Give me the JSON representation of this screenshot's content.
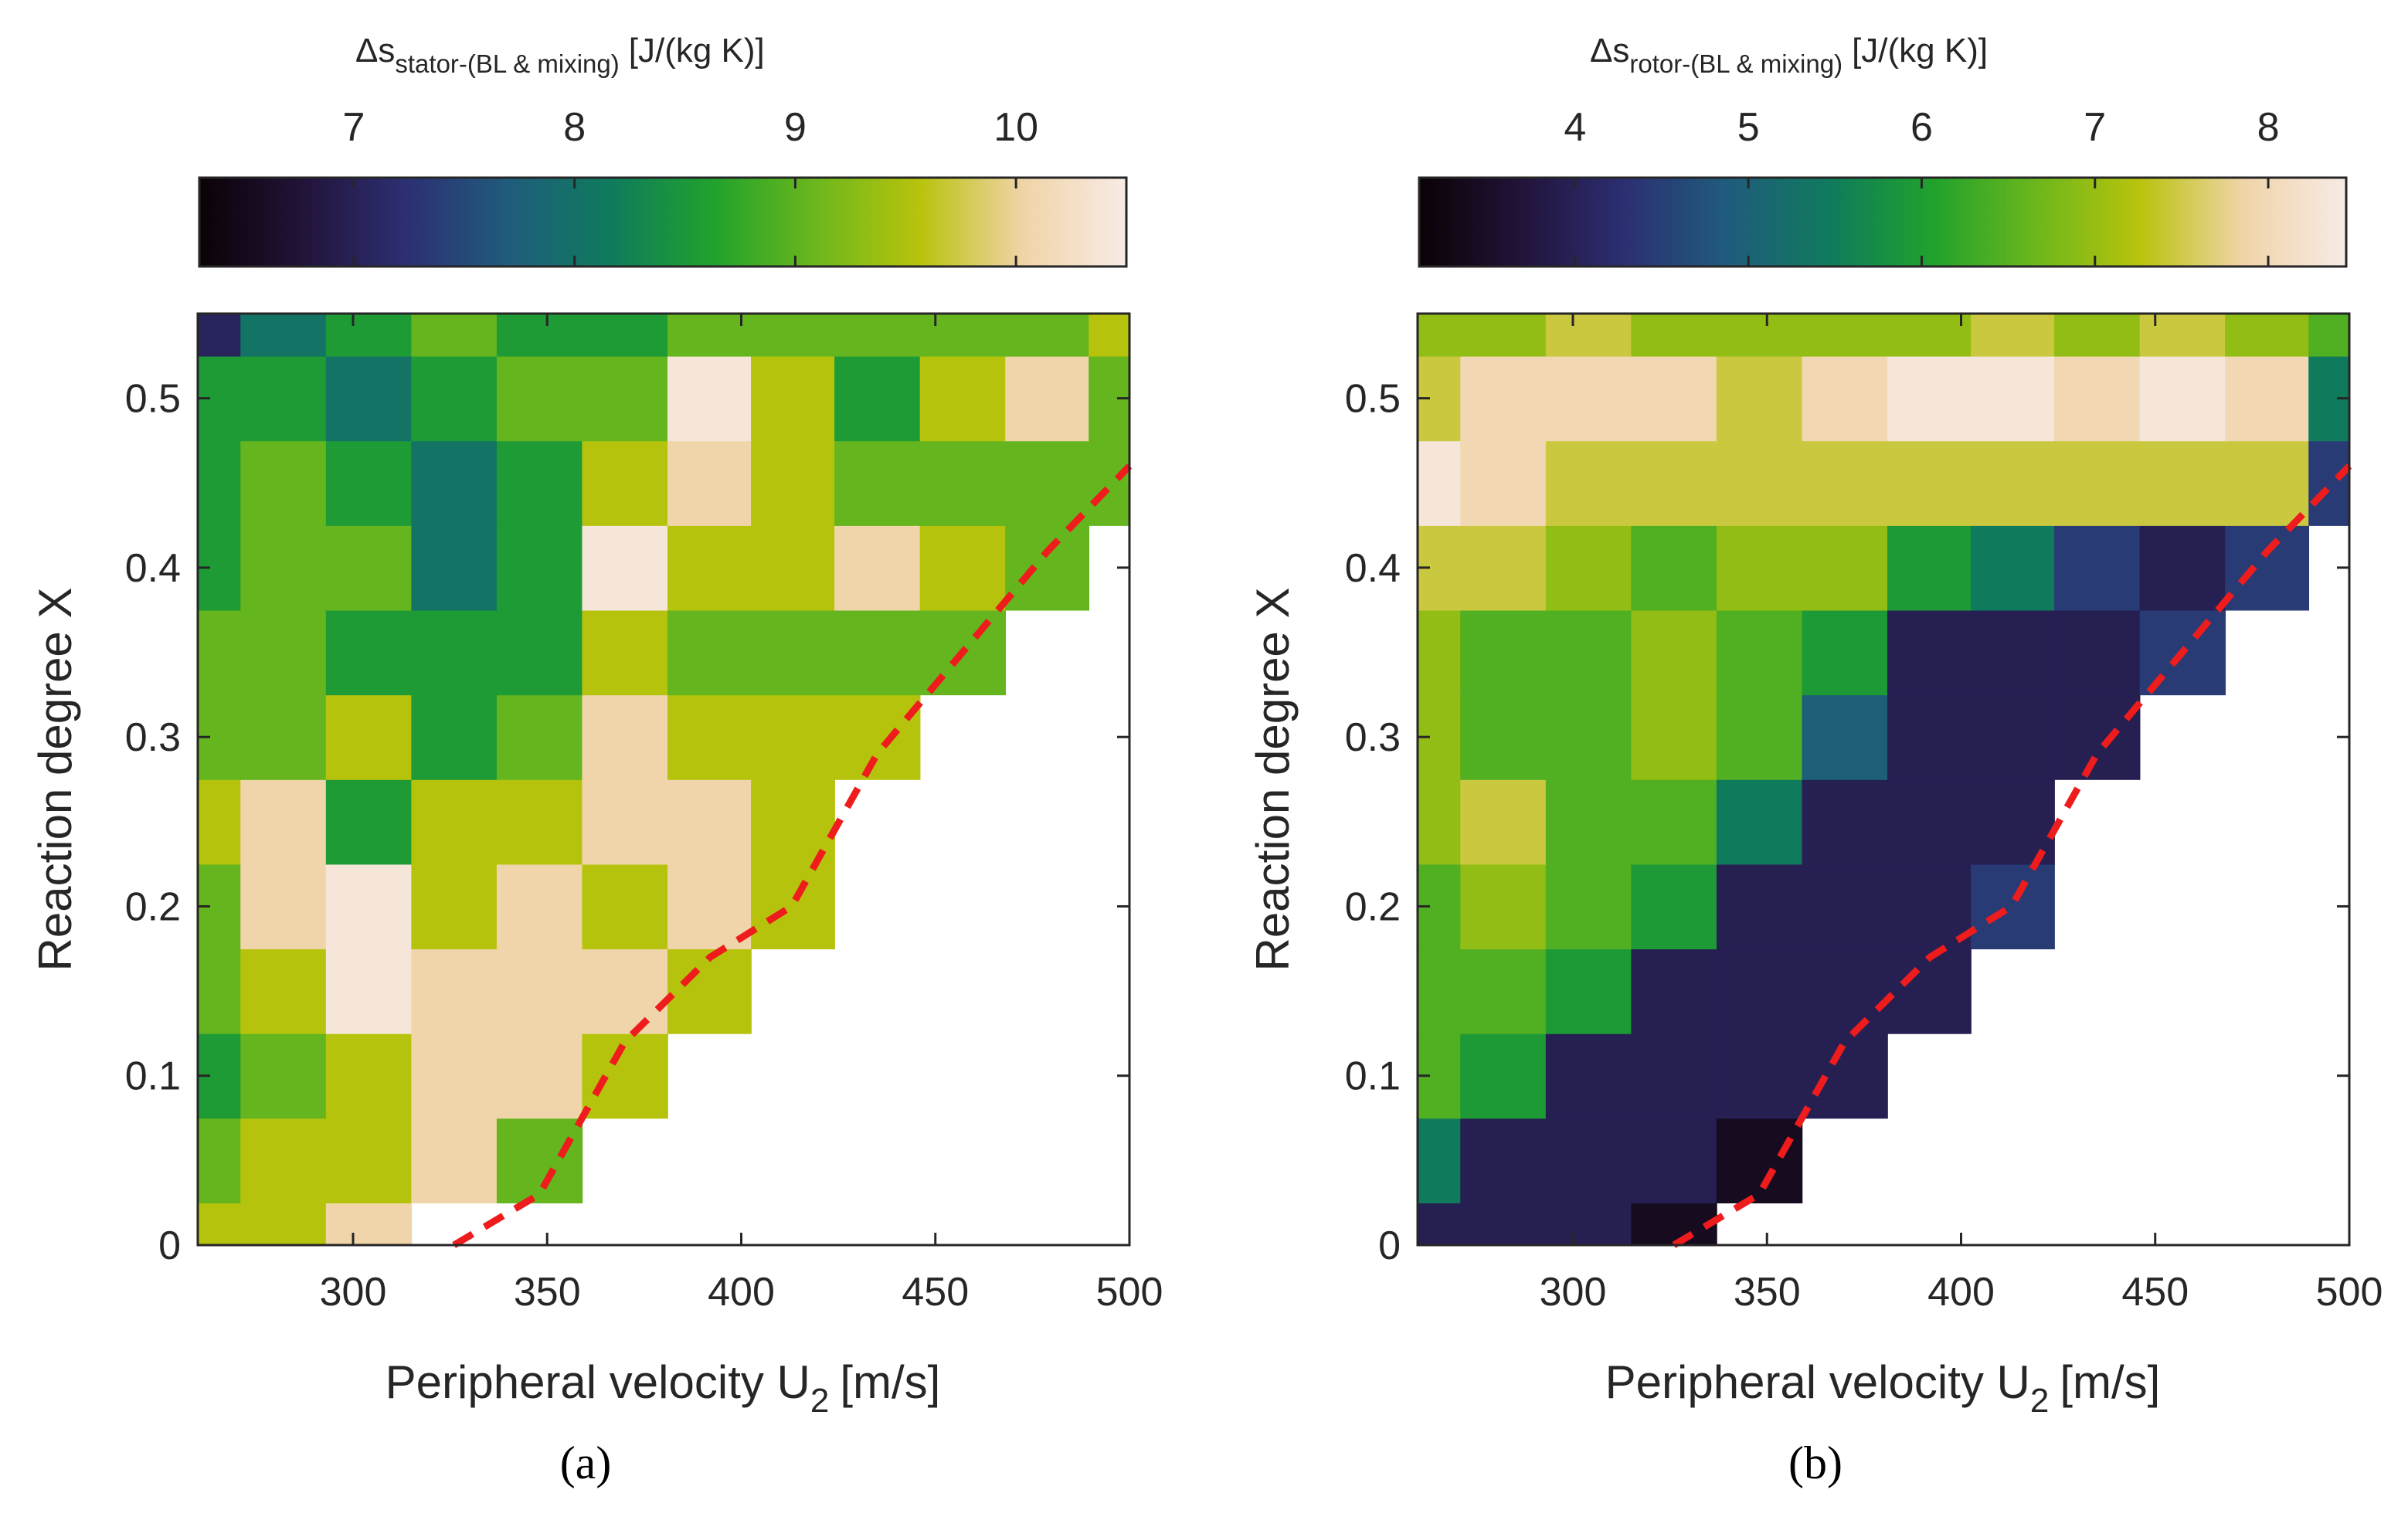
{
  "chart_data": [
    {
      "type": "heatmap",
      "panel_label": "a",
      "colorbar": {
        "title_main": "Δs",
        "title_sub": "stator-(BL & mixing)",
        "title_unit": "[J/(kg K)]",
        "ticks": [
          7,
          8,
          9,
          10
        ],
        "range": [
          6.3,
          10.5
        ],
        "levels": [
          6.8,
          7.3,
          7.8,
          8.3,
          8.8,
          9.3,
          9.8,
          10.3
        ]
      },
      "xlabel_main": "Peripheral velocity U",
      "xlabel_sub": "2",
      "xlabel_unit": "[m/s]",
      "ylabel": "Reaction degree X",
      "xlim": [
        260,
        500
      ],
      "ylim": [
        0,
        0.55
      ],
      "xticks": [
        300,
        350,
        400,
        450,
        500
      ],
      "yticks": [
        0,
        0.1,
        0.2,
        0.3,
        0.4,
        0.5
      ],
      "x": [
        260,
        282,
        304,
        326,
        348,
        370,
        392,
        413,
        435,
        457,
        479,
        500
      ],
      "y": [
        0,
        0.05,
        0.1,
        0.15,
        0.2,
        0.25,
        0.3,
        0.35,
        0.4,
        0.45,
        0.5,
        0.55
      ],
      "boundary_x": [
        326,
        348,
        370,
        392,
        413,
        435,
        457,
        479,
        500
      ],
      "boundary_y": [
        0,
        0.03,
        0.12,
        0.17,
        0.2,
        0.29,
        0.35,
        0.41,
        0.46
      ],
      "z": [
        [
          9.3,
          9.6,
          9.8,
          null,
          null,
          null,
          null,
          null,
          null,
          null,
          null,
          null
        ],
        [
          8.8,
          9.4,
          9.6,
          9.9,
          9.0,
          null,
          null,
          null,
          null,
          null,
          null,
          null
        ],
        [
          8.6,
          9.2,
          9.7,
          9.9,
          9.8,
          9.5,
          null,
          null,
          null,
          null,
          null,
          null
        ],
        [
          8.9,
          9.7,
          10.4,
          10.0,
          9.8,
          9.9,
          9.6,
          null,
          null,
          null,
          null,
          null
        ],
        [
          8.9,
          10.0,
          10.5,
          9.4,
          9.9,
          9.7,
          10.0,
          9.5,
          null,
          null,
          null,
          null
        ],
        [
          9.4,
          10.1,
          8.3,
          9.7,
          9.5,
          9.8,
          9.8,
          9.6,
          null,
          null,
          null,
          null
        ],
        [
          9.1,
          9.2,
          9.3,
          8.5,
          9.0,
          9.8,
          9.6,
          9.3,
          9.4,
          null,
          null,
          null
        ],
        [
          8.8,
          8.9,
          8.3,
          8.3,
          8.5,
          9.6,
          9.2,
          9.2,
          8.9,
          9.0,
          null,
          null
        ],
        [
          8.6,
          9.1,
          8.9,
          8.1,
          8.4,
          10.3,
          9.5,
          9.3,
          10.1,
          9.4,
          9.2,
          null
        ],
        [
          8.4,
          8.8,
          8.4,
          8.0,
          8.5,
          9.6,
          9.9,
          9.6,
          9.1,
          9.2,
          8.8,
          9.0
        ],
        [
          8.3,
          8.5,
          8.0,
          8.5,
          8.9,
          9.2,
          10.4,
          9.4,
          8.7,
          9.4,
          10.2,
          9.2
        ],
        [
          6.8,
          8.2,
          8.6,
          9.0,
          8.7,
          8.4,
          8.9,
          9.2,
          9.1,
          8.8,
          9.2,
          9.4
        ]
      ]
    },
    {
      "type": "heatmap",
      "panel_label": "b",
      "colorbar": {
        "title_main": "Δs",
        "title_sub": "rotor-(BL & mixing)",
        "title_unit": "[J/(kg K)]",
        "ticks": [
          4,
          5,
          6,
          7,
          8
        ],
        "range": [
          3.1,
          8.45
        ],
        "levels": [
          3.7,
          4.2,
          4.7,
          5.2,
          5.7,
          6.2,
          6.7,
          7.2,
          7.7,
          8.2
        ]
      },
      "xlabel_main": "Peripheral velocity U",
      "xlabel_sub": "2",
      "xlabel_unit": "[m/s]",
      "ylabel": "Reaction degree X",
      "xlim": [
        260,
        500
      ],
      "ylim": [
        0,
        0.55
      ],
      "xticks": [
        300,
        350,
        400,
        450,
        500
      ],
      "yticks": [
        0,
        0.1,
        0.2,
        0.3,
        0.4,
        0.5
      ],
      "x": [
        260,
        282,
        304,
        326,
        348,
        370,
        392,
        413,
        435,
        457,
        479,
        500
      ],
      "y": [
        0,
        0.05,
        0.1,
        0.15,
        0.2,
        0.25,
        0.3,
        0.35,
        0.4,
        0.45,
        0.5,
        0.55
      ],
      "boundary_x": [
        326,
        348,
        370,
        392,
        413,
        435,
        457,
        479,
        500
      ],
      "boundary_y": [
        0,
        0.03,
        0.12,
        0.17,
        0.2,
        0.29,
        0.35,
        0.41,
        0.46
      ],
      "z": [
        [
          3.9,
          3.9,
          3.9,
          3.5,
          null,
          null,
          null,
          null,
          null,
          null,
          null,
          null
        ],
        [
          5.6,
          3.9,
          3.9,
          3.8,
          3.3,
          null,
          null,
          null,
          null,
          null,
          null,
          null
        ],
        [
          6.5,
          5.8,
          3.9,
          3.9,
          3.9,
          3.9,
          null,
          null,
          null,
          null,
          null,
          null
        ],
        [
          6.5,
          6.4,
          5.9,
          3.9,
          3.9,
          3.9,
          3.9,
          null,
          null,
          null,
          null,
          null
        ],
        [
          6.6,
          6.7,
          6.3,
          5.8,
          3.9,
          3.9,
          3.9,
          4.4,
          null,
          null,
          null,
          null
        ],
        [
          6.7,
          7.2,
          6.6,
          6.3,
          5.6,
          3.9,
          3.9,
          3.9,
          null,
          null,
          null,
          null
        ],
        [
          6.8,
          6.6,
          6.6,
          6.7,
          6.4,
          4.8,
          3.9,
          3.9,
          3.9,
          null,
          null,
          null
        ],
        [
          6.7,
          6.6,
          6.5,
          6.7,
          6.6,
          5.9,
          3.9,
          3.9,
          3.9,
          4.3,
          null,
          null
        ],
        [
          7.4,
          7.2,
          6.8,
          6.6,
          6.9,
          6.7,
          6.0,
          5.6,
          4.4,
          4.0,
          4.2,
          null
        ],
        [
          8.2,
          7.8,
          7.6,
          7.5,
          7.3,
          7.6,
          7.4,
          7.5,
          7.6,
          7.4,
          7.3,
          4.4
        ],
        [
          7.6,
          8.0,
          7.8,
          7.7,
          7.5,
          7.7,
          8.4,
          8.2,
          8.0,
          8.3,
          8.0,
          5.3
        ],
        [
          6.7,
          7.1,
          7.4,
          7.0,
          6.9,
          7.0,
          7.1,
          7.3,
          7.0,
          7.2,
          6.9,
          6.6
        ]
      ]
    }
  ],
  "captions": [
    "(a)",
    "(b)"
  ],
  "colors": {
    "boundary": "#ee1c1c",
    "axis": "#262626",
    "colormap": [
      "#0a0205",
      "#221339",
      "#2c2f73",
      "#1f5c7c",
      "#0f7b5c",
      "#21a22c",
      "#6db71c",
      "#b9c30c",
      "#f0d4a8",
      "#f8ebe6"
    ]
  }
}
